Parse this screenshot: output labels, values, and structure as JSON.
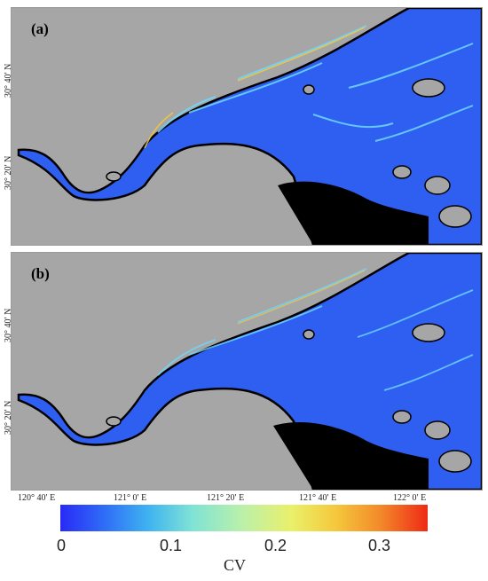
{
  "panels": [
    {
      "label": "(a)"
    },
    {
      "label": "(b)"
    }
  ],
  "axes": {
    "y_ticks": [
      "30° 40′ N",
      "30° 20′ N"
    ],
    "x_ticks": [
      "120° 40′ E",
      "121° 0′ E",
      "121° 20′ E",
      "121° 40′ E",
      "122° 0′ E"
    ]
  },
  "colorbar": {
    "title": "CV",
    "ticks": [
      "0",
      "0.1",
      "0.2",
      "0.3"
    ],
    "range": [
      0,
      0.35
    ],
    "colors": [
      "#2a2af5",
      "#3fb3f0",
      "#bdf0a8",
      "#f5c83c",
      "#ee2a16"
    ]
  },
  "map_colors": {
    "land": "#a6a6a6",
    "water": "#2f5ff0",
    "masked": "#000000",
    "highlight": "#6fd8ff"
  }
}
